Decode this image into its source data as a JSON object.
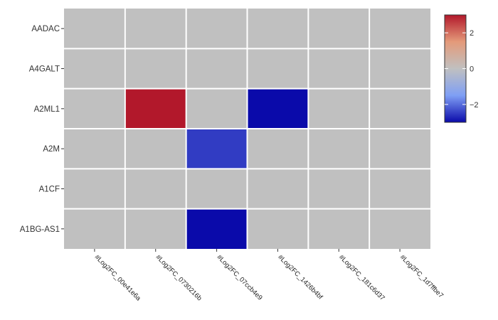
{
  "chart_data": {
    "type": "heatmap",
    "title": "",
    "xlabel": "",
    "ylabel": "",
    "x_categories": [
      "#Log2FC_00e41e6a",
      "#Log2FC_0730216b",
      "#Log2FC_07ccb4e9",
      "#Log2FC_1426b4bf",
      "#Log2FC_181c6d37",
      "#Log2FC_1d7ffbe7"
    ],
    "y_categories": [
      "AADAC",
      "A4GALT",
      "A2ML1",
      "A2M",
      "A1CF",
      "A1BG-AS1"
    ],
    "values": [
      [
        0,
        0,
        0,
        0,
        0,
        0
      ],
      [
        0,
        0,
        0,
        0,
        0,
        0
      ],
      [
        0,
        3.0,
        0,
        -3.0,
        0,
        0
      ],
      [
        0,
        0,
        -2.5,
        0,
        0,
        0
      ],
      [
        0,
        0,
        0,
        0,
        0,
        0
      ],
      [
        0,
        0,
        -3.0,
        0,
        0,
        0
      ]
    ],
    "colorscale": {
      "min": -3,
      "max": 3,
      "ticks": [
        2,
        0,
        -2
      ],
      "colors": {
        "low": "#0a0aaa",
        "mid_low": "#7f9ff5",
        "mid": "#c0c0c0",
        "mid_high": "#e49a7a",
        "high": "#b2182b"
      }
    },
    "legend_position": "top-right",
    "grid": true,
    "panel_background": "#c0c0c0",
    "grid_color": "#ffffff"
  }
}
